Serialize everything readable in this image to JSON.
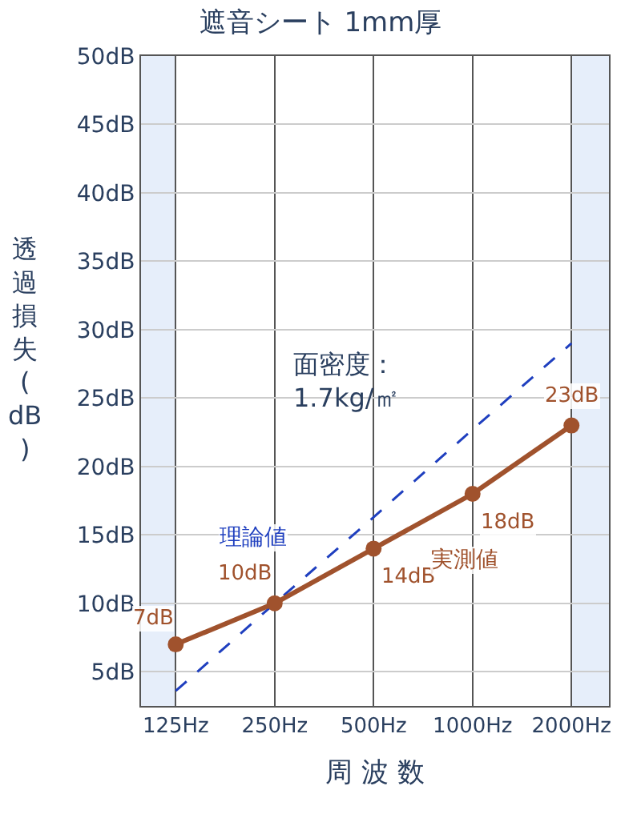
{
  "chart_data": {
    "type": "line",
    "title": "遮音シート 1mm厚",
    "xlabel": "周 波 数",
    "ylabel": "透過損失(dB)",
    "x": [
      125,
      250,
      500,
      1000,
      2000
    ],
    "log": "x",
    "xlim": [
      98,
      2600
    ],
    "xticks": [
      {
        "value": 125,
        "label": "125Hz"
      },
      {
        "value": 250,
        "label": "250Hz"
      },
      {
        "value": 500,
        "label": "500Hz"
      },
      {
        "value": 1000,
        "label": "1000Hz"
      },
      {
        "value": 2000,
        "label": "2000Hz"
      }
    ],
    "ylim": [
      2.5,
      50
    ],
    "yticks": [
      {
        "value": 5,
        "label": "5dB"
      },
      {
        "value": 10,
        "label": "10dB"
      },
      {
        "value": 15,
        "label": "15dB"
      },
      {
        "value": 20,
        "label": "20dB"
      },
      {
        "value": 25,
        "label": "25dB"
      },
      {
        "value": 30,
        "label": "30dB"
      },
      {
        "value": 35,
        "label": "35dB"
      },
      {
        "value": 40,
        "label": "40dB"
      },
      {
        "value": 45,
        "label": "45dB"
      },
      {
        "value": 50,
        "label": "50dB"
      }
    ],
    "grid": true,
    "legend": false,
    "bands": [
      {
        "axis": "x",
        "from": 98,
        "to": 125,
        "color": "#e6eefa"
      },
      {
        "axis": "x",
        "from": 2000,
        "to": 2600,
        "color": "#e6eefa"
      }
    ],
    "series": [
      {
        "name": "理論値",
        "color": "#1f3fbf",
        "line_style": "dashed",
        "marker": "none",
        "values": [
          3.6,
          10,
          16.3,
          22.7,
          29
        ]
      },
      {
        "name": "実測値",
        "color": "#a0522d",
        "line_style": "solid",
        "marker": "circle",
        "values": [
          7,
          10,
          14,
          18,
          23
        ],
        "value_labels": [
          "7dB",
          "10dB",
          "14dB",
          "18dB",
          "23dB"
        ]
      }
    ],
    "annotations": [
      "面密度：\n1.7kg/㎡"
    ]
  }
}
